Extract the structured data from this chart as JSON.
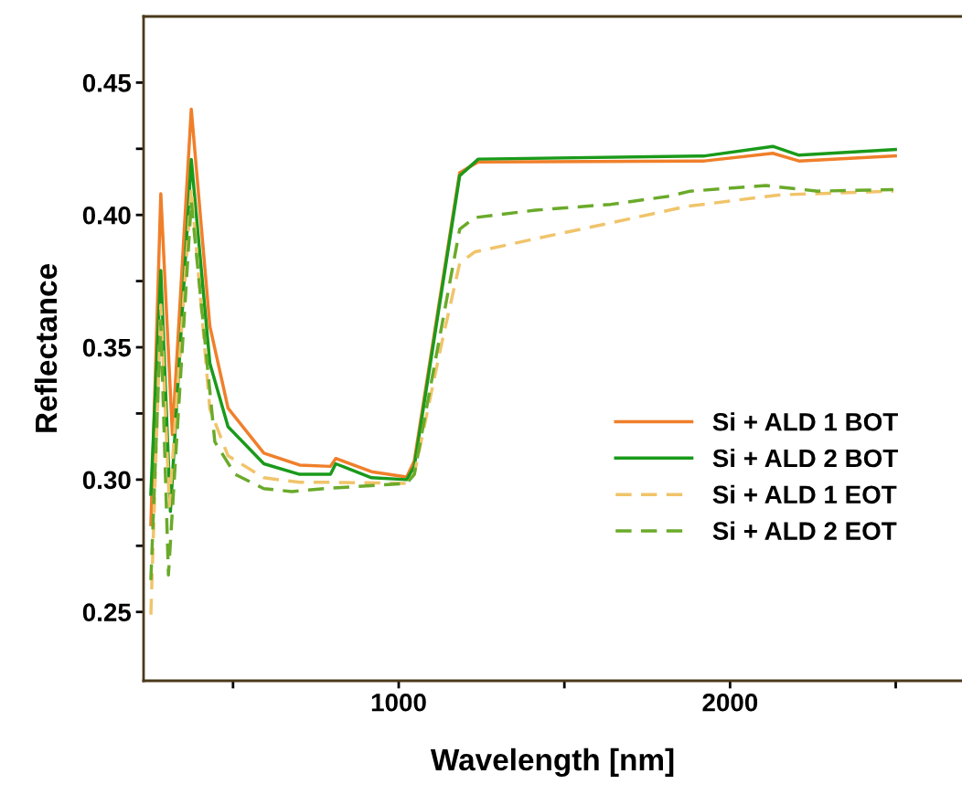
{
  "chart_data": {
    "type": "line",
    "xlabel": "Wavelength [nm]",
    "ylabel": "Reflectance",
    "xlim": [
      230,
      2700
    ],
    "ylim": [
      0.224,
      0.475
    ],
    "xticks": [
      {
        "value": 500,
        "label": null
      },
      1000,
      {
        "value": 1500,
        "label": null
      },
      2000,
      {
        "value": 2500,
        "label": null
      }
    ],
    "yticks": [
      0.25,
      {
        "value": 0.275,
        "label": null
      },
      {
        "value": 0.3,
        "label": "0.30"
      },
      {
        "value": 0.325,
        "label": null
      },
      0.35,
      {
        "value": 0.375,
        "label": null
      },
      {
        "value": 0.4,
        "label": "0.40"
      },
      {
        "value": 0.425,
        "label": null
      },
      0.45
    ],
    "grid": false,
    "legend": "bottom right",
    "series": [
      {
        "name": "Si + ALD 1 BOT",
        "color": "#f07f2a",
        "line_style": "solid",
        "x": [
          252,
          282,
          317,
          374,
          430,
          485,
          593,
          701,
          794,
          810,
          918,
          1024,
          1047,
          1184,
          1240,
          1923,
          2129,
          2208,
          2499
        ],
        "values": [
          0.283,
          0.408,
          0.317,
          0.44,
          0.358,
          0.327,
          0.31,
          0.3055,
          0.305,
          0.308,
          0.303,
          0.301,
          0.307,
          0.416,
          0.42,
          0.4204,
          0.4233,
          0.4204,
          0.4223
        ]
      },
      {
        "name": "Si + ALD 2 BOT",
        "color": "#1a9a1a",
        "line_style": "solid",
        "x": [
          252,
          282,
          311,
          374,
          430,
          485,
          593,
          701,
          794,
          810,
          918,
          1024,
          1047,
          1184,
          1240,
          1923,
          2129,
          2208,
          2499
        ],
        "values": [
          0.2945,
          0.379,
          0.288,
          0.421,
          0.344,
          0.32,
          0.306,
          0.302,
          0.302,
          0.306,
          0.3007,
          0.3,
          0.305,
          0.4148,
          0.4211,
          0.4223,
          0.4259,
          0.4226,
          0.4247
        ]
      },
      {
        "name": "Si + ALD 1 EOT",
        "color": "#f0c46a",
        "line_style": "dashed",
        "x": [
          252,
          282,
          308,
          374,
          430,
          485,
          593,
          701,
          794,
          1024,
          1047,
          1127,
          1184,
          1229,
          1412,
          1640,
          1868,
          2039,
          2153,
          2493
        ],
        "values": [
          0.249,
          0.366,
          0.29,
          0.41,
          0.3266,
          0.309,
          0.3007,
          0.299,
          0.299,
          0.2986,
          0.302,
          0.35,
          0.3817,
          0.386,
          0.391,
          0.397,
          0.4032,
          0.4059,
          0.4076,
          0.409
        ]
      },
      {
        "name": "Si + ALD 2 EOT",
        "color": "#6aaa2a",
        "line_style": "dashed",
        "x": [
          252,
          282,
          305,
          374,
          445,
          506,
          593,
          677,
          775,
          1024,
          1047,
          1184,
          1229,
          1412,
          1640,
          1811,
          1880,
          2108,
          2265,
          2493
        ],
        "values": [
          0.262,
          0.36,
          0.264,
          0.405,
          0.3143,
          0.302,
          0.2966,
          0.2955,
          0.2966,
          0.2986,
          0.302,
          0.3946,
          0.399,
          0.4018,
          0.404,
          0.407,
          0.409,
          0.4111,
          0.409,
          0.4096
        ]
      }
    ]
  }
}
